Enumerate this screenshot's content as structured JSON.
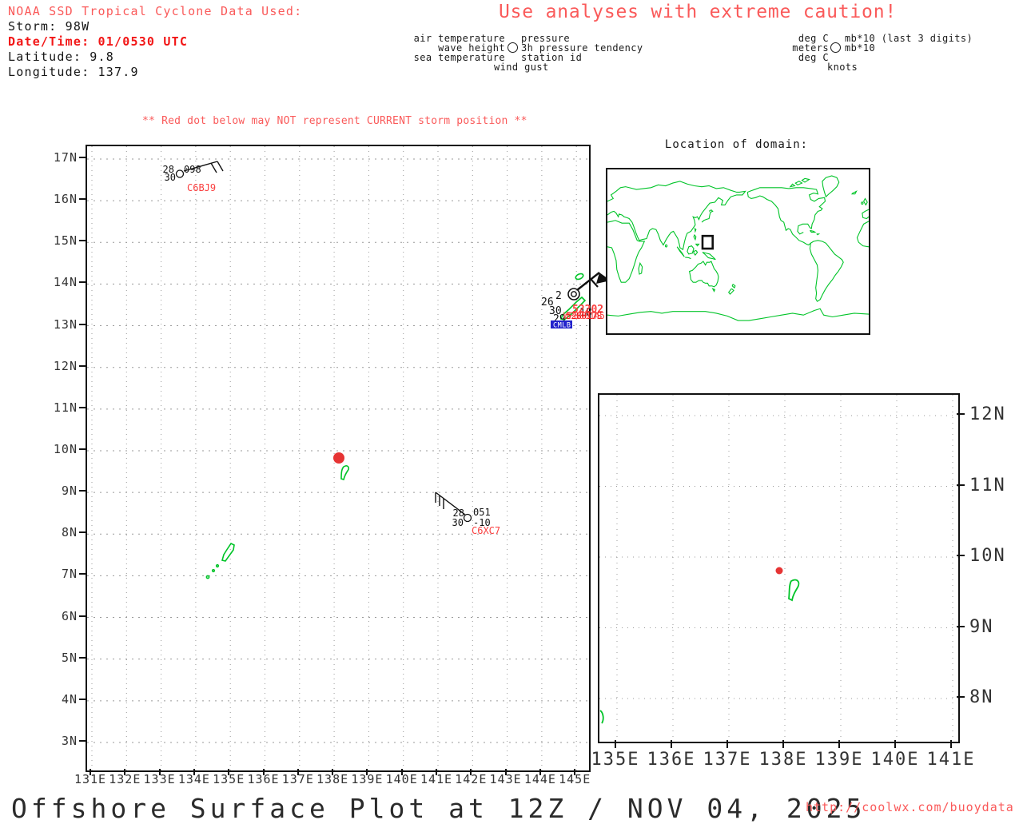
{
  "header": {
    "source_line": "NOAA SSD Tropical Cyclone Data Used:",
    "storm": "Storm: 98W",
    "datetime": "Date/Time: 01/0530 UTC",
    "latitude": "Latitude: 9.8",
    "longitude": "Longitude: 137.9"
  },
  "caution_banner": "Use analyses with extreme caution!",
  "storm_warning": "** Red dot below may NOT represent CURRENT storm position **",
  "station_model_legend": {
    "air_temperature": "air temperature",
    "wave_height": "wave height",
    "sea_temperature": "sea temperature",
    "wind_gust": "wind gust",
    "pressure": "pressure",
    "pressure_tendency": "3h pressure tendency",
    "station_id": "station id"
  },
  "units_legend": {
    "air_temperature_units": "deg C",
    "wave_height_units": "meters",
    "sea_temperature_units": "deg C",
    "wind_gust_units": "knots",
    "pressure_units": "mb*10 (last 3 digits)",
    "pressure_tendency_units": "mb*10"
  },
  "world_inset": {
    "title": "Location of domain:"
  },
  "main_map": {
    "x_ticks": [
      "131E",
      "132E",
      "133E",
      "134E",
      "135E",
      "136E",
      "137E",
      "138E",
      "139E",
      "140E",
      "141E",
      "142E",
      "143E",
      "144E",
      "145E"
    ],
    "y_ticks": [
      "17N",
      "16N",
      "15N",
      "14N",
      "13N",
      "12N",
      "11N",
      "10N",
      "9N",
      "8N",
      "7N",
      "6N",
      "5N",
      "4N",
      "3N"
    ],
    "storm_dot": {
      "lat": 9.8,
      "lon": 137.9
    },
    "stations": [
      {
        "id": "C6BJ9",
        "air_temp": "28",
        "pressure": "098",
        "sea_temp": "30"
      },
      {
        "id": "C6XC7",
        "air_temp": "28",
        "pressure": "051",
        "sea_temp": "30",
        "pressure_tendency": "-10"
      },
      {
        "id": "52202",
        "air_temp": "2",
        "values": [
          "26",
          "30",
          "29",
          "18"
        ],
        "overlapped_ids_approx": [
          "WP8001A5",
          "528017S"
        ],
        "blue_id_approx": "CMLB"
      }
    ]
  },
  "zoom_map": {
    "x_ticks": [
      "135E",
      "136E",
      "137E",
      "138E",
      "139E",
      "140E",
      "141E"
    ],
    "y_ticks": [
      "12N",
      "11N",
      "10N",
      "9N",
      "8N"
    ],
    "storm_dot": {
      "lat": 9.8,
      "lon": 137.9
    }
  },
  "footer": {
    "title": "Offshore Surface Plot at 12Z / NOV 04, 2025",
    "url": "http://coolwx.com/buoydata"
  },
  "colors": {
    "salmon": "#fa5a5a",
    "bold_red": "#f21616",
    "station_red": "#fa4040",
    "storm_dot_red": "#e63434",
    "land_green": "#00c428",
    "ship_blue": "#2323cc"
  }
}
